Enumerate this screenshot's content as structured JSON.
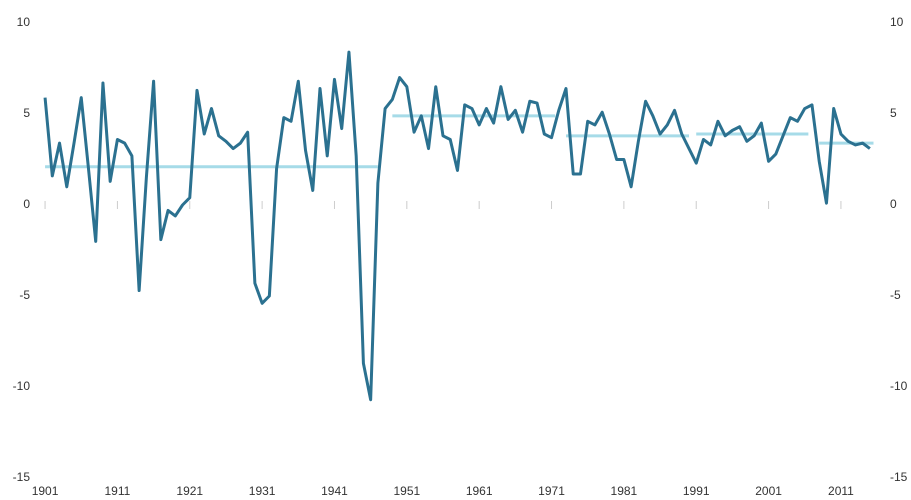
{
  "chart_data": {
    "type": "line",
    "x": [
      1901,
      1902,
      1903,
      1904,
      1905,
      1906,
      1907,
      1908,
      1909,
      1910,
      1911,
      1912,
      1913,
      1914,
      1915,
      1916,
      1917,
      1918,
      1919,
      1920,
      1921,
      1922,
      1923,
      1924,
      1925,
      1926,
      1927,
      1928,
      1929,
      1930,
      1931,
      1932,
      1933,
      1934,
      1935,
      1936,
      1937,
      1938,
      1939,
      1940,
      1941,
      1942,
      1943,
      1944,
      1945,
      1946,
      1947,
      1948,
      1949,
      1950,
      1951,
      1952,
      1953,
      1954,
      1955,
      1956,
      1957,
      1958,
      1959,
      1960,
      1961,
      1962,
      1963,
      1964,
      1965,
      1966,
      1967,
      1968,
      1969,
      1970,
      1971,
      1972,
      1973,
      1974,
      1975,
      1976,
      1977,
      1978,
      1979,
      1980,
      1981,
      1982,
      1983,
      1984,
      1985,
      1986,
      1987,
      1988,
      1989,
      1990,
      1991,
      1992,
      1993,
      1994,
      1995,
      1996,
      1997,
      1998,
      1999,
      2000,
      2001,
      2002,
      2003,
      2004,
      2005,
      2006,
      2007,
      2008,
      2009,
      2010,
      2011,
      2012,
      2013,
      2014,
      2015
    ],
    "series": [
      {
        "color": "#2b7190",
        "values": [
          5.9,
          1.6,
          3.4,
          1.0,
          3.4,
          5.9,
          2.0,
          -2.0,
          6.7,
          1.3,
          3.6,
          3.4,
          2.7,
          -4.7,
          1.5,
          6.8,
          -1.9,
          -0.3,
          -0.6,
          0.0,
          0.4,
          6.3,
          3.9,
          5.3,
          3.8,
          3.5,
          3.1,
          3.4,
          4.0,
          -4.3,
          -5.4,
          -5.0,
          2.0,
          4.8,
          4.6,
          6.8,
          3.0,
          0.8,
          6.4,
          2.7,
          6.9,
          4.2,
          8.4,
          2.7,
          -8.7,
          -10.7,
          1.2,
          5.3,
          5.8,
          7.0,
          6.5,
          4.0,
          4.9,
          3.1,
          6.5,
          3.8,
          3.6,
          1.9,
          5.5,
          5.3,
          4.4,
          5.3,
          4.5,
          6.5,
          4.7,
          5.2,
          4.0,
          5.7,
          5.6,
          3.9,
          3.7,
          5.2,
          6.4,
          1.7,
          1.7,
          4.6,
          4.4,
          5.1,
          3.9,
          2.5,
          2.5,
          1.0,
          3.5,
          5.7,
          4.9,
          3.9,
          4.4,
          5.2,
          3.9,
          3.1,
          2.3,
          3.6,
          3.3,
          4.6,
          3.8,
          4.1,
          4.3,
          3.5,
          3.8,
          4.5,
          2.4,
          2.8,
          3.8,
          4.8,
          4.6,
          5.3,
          5.5,
          2.4,
          0.1,
          5.3,
          3.9,
          3.5,
          3.3,
          3.4,
          3.1
        ]
      }
    ],
    "averages": {
      "color": "#a6dbe8",
      "segments": [
        {
          "start": 1901,
          "end": 1947,
          "value": 2.1
        },
        {
          "start": 1949,
          "end": 1971.5,
          "value": 4.9
        },
        {
          "start": 1973,
          "end": 1990,
          "value": 3.8
        },
        {
          "start": 1991,
          "end": 2006.5,
          "value": 3.9
        },
        {
          "start": 2008,
          "end": 2015.5,
          "value": 3.4
        }
      ]
    },
    "xlim": [
      1900.3,
      2016.4
    ],
    "xticks": [
      1901,
      1911,
      1921,
      1931,
      1941,
      1951,
      1961,
      1971,
      1981,
      1991,
      2001,
      2011
    ],
    "ylim": [
      -15,
      10
    ],
    "yticks": [
      -15,
      -10,
      -5,
      0,
      5,
      10
    ],
    "y2lim": [
      -15,
      10
    ],
    "y2ticks": [
      -15,
      -10,
      -5,
      0,
      5,
      10
    ]
  }
}
